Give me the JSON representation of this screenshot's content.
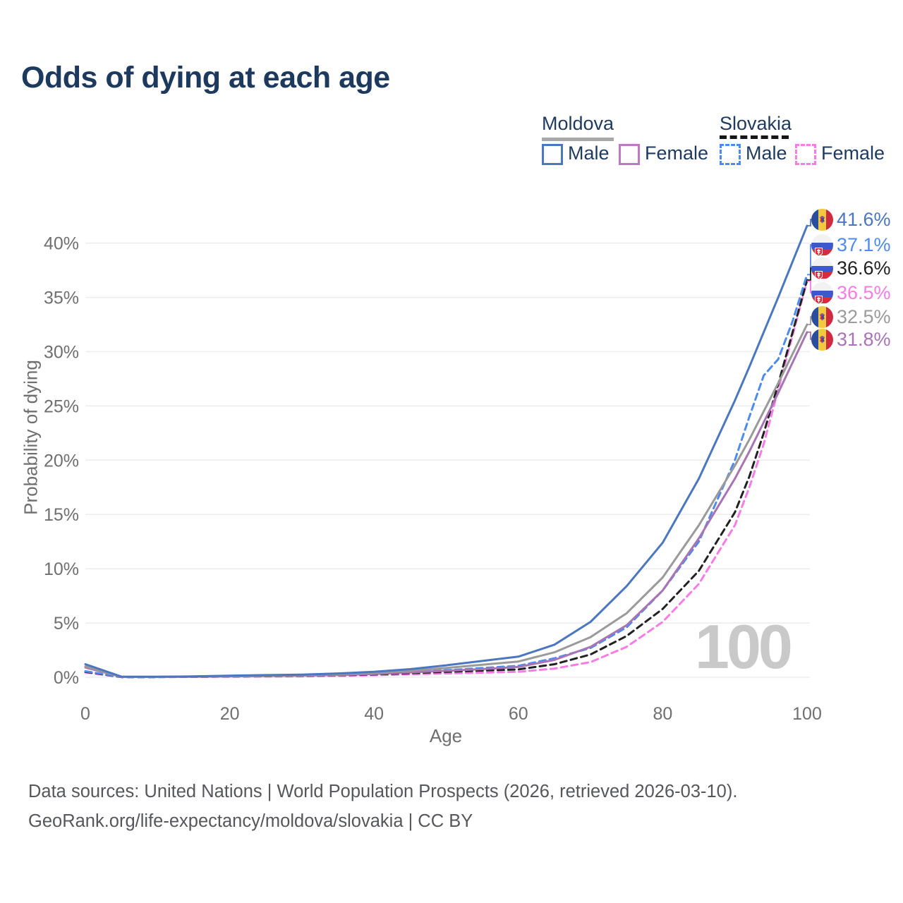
{
  "title": "Odds of dying at each age",
  "legend": {
    "groups": [
      {
        "label": "Moldova",
        "line_style": "solid",
        "items": [
          {
            "label": "Male",
            "color": "#4a77c0"
          },
          {
            "label": "Female",
            "color": "#bd7ac0"
          }
        ]
      },
      {
        "label": "Slovakia",
        "line_style": "dashed",
        "items": [
          {
            "label": "Male",
            "color": "#4d8bf0"
          },
          {
            "label": "Female",
            "color": "#f97ce6"
          }
        ]
      }
    ]
  },
  "icons": {
    "moldova_flag": "moldova-flag (blue/yellow/red vertical tricolor circle with eagle emblem)",
    "slovakia_flag": "slovakia-flag (white/blue/red horizontal bands circle with double-cross shield)"
  },
  "chart_data": {
    "type": "line",
    "title": "Odds of dying at each age",
    "xlabel": "Age",
    "ylabel": "Probability of dying",
    "xlim": [
      0,
      100
    ],
    "ylim_percent": [
      0,
      42
    ],
    "grid": "horizontal only",
    "legend_position": "top-right",
    "watermark": "100",
    "x_ticks": [
      "0",
      "20",
      "40",
      "60",
      "80",
      "100"
    ],
    "x_tick_values": [
      0,
      20,
      40,
      60,
      80,
      100
    ],
    "y_ticks": [
      "0%",
      "5%",
      "10%",
      "15%",
      "20%",
      "25%",
      "30%",
      "35%",
      "40%"
    ],
    "y_tick_values": [
      0,
      5,
      10,
      15,
      20,
      25,
      30,
      35,
      40
    ],
    "ages": [
      0,
      5,
      10,
      15,
      20,
      25,
      30,
      35,
      40,
      45,
      50,
      55,
      60,
      65,
      70,
      75,
      80,
      85,
      90,
      92,
      94,
      96,
      98,
      100
    ],
    "series": [
      {
        "id": "moldova-male",
        "name": "Moldova Male",
        "country": "Moldova",
        "color": "#4a77c0",
        "dashed": false,
        "end_label": "41.6%",
        "values": [
          1.2,
          0.05,
          0.05,
          0.08,
          0.15,
          0.2,
          0.25,
          0.35,
          0.5,
          0.75,
          1.1,
          1.5,
          1.9,
          3.0,
          5.1,
          8.4,
          12.4,
          18.3,
          25.5,
          28.6,
          31.8,
          35.0,
          38.3,
          41.6
        ]
      },
      {
        "id": "moldova-female",
        "name": "Moldova Female",
        "country": "Moldova",
        "color": "#a874b4",
        "dashed": false,
        "end_label": "31.8%",
        "values": [
          0.9,
          0.03,
          0.03,
          0.05,
          0.08,
          0.11,
          0.14,
          0.2,
          0.3,
          0.45,
          0.6,
          0.75,
          0.95,
          1.6,
          2.8,
          4.8,
          8.0,
          12.8,
          18.3,
          20.8,
          23.5,
          26.2,
          29.0,
          31.8
        ]
      },
      {
        "id": "moldova-total",
        "name": "Moldova",
        "country": "Moldova",
        "color": "#9a9a9a",
        "dashed": false,
        "end_label": "32.5%",
        "values": [
          1.0,
          0.04,
          0.04,
          0.07,
          0.12,
          0.16,
          0.2,
          0.28,
          0.4,
          0.6,
          0.85,
          1.15,
          1.45,
          2.3,
          3.7,
          5.9,
          9.2,
          14.0,
          19.5,
          21.9,
          24.5,
          27.1,
          29.8,
          32.5
        ]
      },
      {
        "id": "slovakia-male",
        "name": "Slovakia Male",
        "country": "Slovakia",
        "color": "#4d8bf0",
        "dashed": true,
        "end_label": "37.1%",
        "values": [
          0.55,
          0.03,
          0.03,
          0.05,
          0.1,
          0.13,
          0.16,
          0.22,
          0.32,
          0.45,
          0.65,
          0.85,
          1.05,
          1.75,
          2.7,
          4.6,
          8.0,
          12.5,
          20.0,
          24.0,
          27.8,
          29.3,
          32.8,
          37.1
        ]
      },
      {
        "id": "slovakia-female",
        "name": "Slovakia Female",
        "country": "Slovakia",
        "color": "#f97ce6",
        "dashed": true,
        "end_label": "36.5%",
        "values": [
          0.45,
          0.02,
          0.02,
          0.03,
          0.05,
          0.07,
          0.09,
          0.13,
          0.19,
          0.27,
          0.35,
          0.42,
          0.5,
          0.8,
          1.4,
          2.8,
          5.1,
          8.6,
          14.0,
          17.5,
          21.5,
          26.5,
          31.5,
          36.5
        ]
      },
      {
        "id": "slovakia-total",
        "name": "Slovakia",
        "country": "Slovakia",
        "color": "#212121",
        "dashed": true,
        "end_label": "36.6%",
        "values": [
          0.5,
          0.02,
          0.02,
          0.04,
          0.07,
          0.1,
          0.13,
          0.18,
          0.26,
          0.38,
          0.5,
          0.62,
          0.72,
          1.2,
          2.1,
          3.8,
          6.3,
          9.8,
          15.2,
          18.5,
          22.5,
          27.0,
          31.8,
          36.6
        ]
      }
    ]
  },
  "footer": {
    "line1": "Data sources: United Nations | World Population Prospects (2026, retrieved 2026-03-10).",
    "line2": "GeoRank.org/life-expectancy/moldova/slovakia | CC BY"
  }
}
